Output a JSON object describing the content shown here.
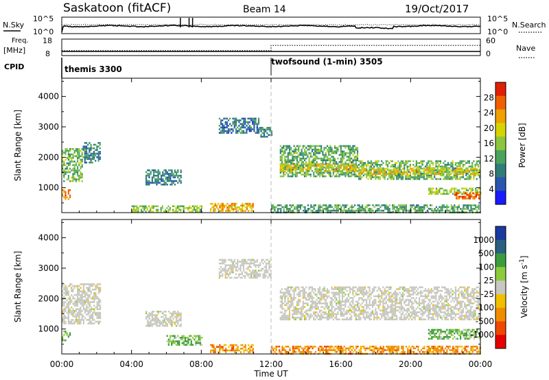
{
  "chart_data": {
    "type": "heatmap",
    "title": "Saskatoon (fitACF)",
    "beam_label": "Beam 14",
    "date": "19/Oct/2017",
    "x_ticks": [
      "00:00",
      "04:00",
      "08:00",
      "12:00",
      "16:00",
      "20:00",
      "00:00"
    ],
    "xlabel": "Time UT",
    "x_range_hours": [
      0,
      24
    ],
    "nsky_panel": {
      "left_label": "N.Sky",
      "right_label": "N.Search",
      "left_ticks": [
        "10^5",
        "10^0"
      ],
      "right_ticks": [
        "10^5",
        "10^0"
      ]
    },
    "freq_panel": {
      "left_label_1": "Freq.",
      "left_label_2": "[MHz]",
      "right_label": "Nave",
      "left_ticks": [
        "18",
        "8"
      ],
      "right_ticks": [
        "60",
        "0"
      ],
      "frequency_mhz": 10.5,
      "nave_series": [
        {
          "t_from": 0,
          "t_to": 12,
          "value": 18
        },
        {
          "t_from": 12,
          "t_to": 24,
          "value": 37
        }
      ]
    },
    "cpid_panel": {
      "label": "CPID",
      "programs": [
        {
          "name": "themis 3300",
          "start_hour": 0
        },
        {
          "name": "twofsound (1-min) 3505",
          "start_hour": 12
        }
      ]
    },
    "y_ticks": [
      "4000",
      "3000",
      "2000",
      "1000"
    ],
    "ylabel": "Slant Range [km]",
    "y_range_km": [
      180,
      4600
    ],
    "power_panel": {
      "colorbar_label": "Power [dB]",
      "colorbar_ticks": [
        "28",
        "24",
        "20",
        "16",
        "12",
        "8",
        "4"
      ],
      "colorbar_range_db": [
        0,
        32
      ],
      "colors": [
        "#1a1aff",
        "#2a55b0",
        "#2f7d7a",
        "#4aa35c",
        "#8cc63f",
        "#d6d400",
        "#f0a000",
        "#f06000",
        "#e02000"
      ],
      "echo_regions": [
        {
          "t0": 0.0,
          "t1": 1.2,
          "r0": 1200,
          "r1": 2300,
          "db": 14
        },
        {
          "t0": 1.2,
          "t1": 2.2,
          "r0": 1800,
          "r1": 2500,
          "db": 10
        },
        {
          "t0": 0.0,
          "t1": 0.5,
          "r0": 600,
          "r1": 950,
          "db": 24
        },
        {
          "t0": 4.8,
          "t1": 6.8,
          "r0": 1100,
          "r1": 1600,
          "db": 9
        },
        {
          "t0": 9.0,
          "t1": 11.3,
          "r0": 2800,
          "r1": 3300,
          "db": 8
        },
        {
          "t0": 11.3,
          "t1": 12.0,
          "r0": 2700,
          "r1": 3000,
          "db": 9
        },
        {
          "t0": 8.5,
          "t1": 11.0,
          "r0": 250,
          "r1": 500,
          "db": 22
        },
        {
          "t0": 4.0,
          "t1": 8.0,
          "r0": 220,
          "r1": 420,
          "db": 16
        },
        {
          "t0": 12.5,
          "t1": 17.0,
          "r0": 1400,
          "r1": 2400,
          "db": 13
        },
        {
          "t0": 12.5,
          "t1": 17.0,
          "r0": 1550,
          "r1": 1800,
          "db": 20
        },
        {
          "t0": 17.0,
          "t1": 24.0,
          "r0": 1300,
          "r1": 1900,
          "db": 14
        },
        {
          "t0": 17.0,
          "t1": 24.0,
          "r0": 1450,
          "r1": 1650,
          "db": 20
        },
        {
          "t0": 21.0,
          "t1": 24.0,
          "r0": 800,
          "r1": 1000,
          "db": 16
        },
        {
          "t0": 22.5,
          "t1": 24.0,
          "r0": 650,
          "r1": 850,
          "db": 27
        },
        {
          "t0": 12.0,
          "t1": 24.0,
          "r0": 200,
          "r1": 450,
          "db": 12
        }
      ]
    },
    "velocity_panel": {
      "colorbar_label": "Velocity [m s^-1]",
      "colorbar_ticks": [
        "1000",
        "500",
        "100",
        "25",
        "-25",
        "-100",
        "-500",
        "-1000"
      ],
      "colorbar_range_ms": [
        -1500,
        1500
      ],
      "colors": [
        "#e60000",
        "#f04800",
        "#f08c00",
        "#f0c000",
        "#c8c8c0",
        "#8ccc3c",
        "#3c9c3c",
        "#2a6080",
        "#1a3aa0"
      ],
      "echo_regions": [
        {
          "t0": 0.0,
          "t1": 2.2,
          "r0": 1200,
          "r1": 2500,
          "class": "ground"
        },
        {
          "t0": 0.0,
          "t1": 0.5,
          "r0": 600,
          "r1": 950,
          "class": "positive"
        },
        {
          "t0": 4.8,
          "t1": 6.8,
          "r0": 1100,
          "r1": 1600,
          "class": "ground"
        },
        {
          "t0": 9.0,
          "t1": 12.0,
          "r0": 2700,
          "r1": 3300,
          "class": "ground"
        },
        {
          "t0": 8.5,
          "t1": 11.0,
          "r0": 250,
          "r1": 500,
          "class": "negative"
        },
        {
          "t0": 6.0,
          "t1": 8.0,
          "r0": 500,
          "r1": 800,
          "class": "positive"
        },
        {
          "t0": 12.5,
          "t1": 24.0,
          "r0": 1300,
          "r1": 2400,
          "class": "ground"
        },
        {
          "t0": 21.0,
          "t1": 24.0,
          "r0": 650,
          "r1": 1000,
          "class": "positive"
        },
        {
          "t0": 12.0,
          "t1": 24.0,
          "r0": 200,
          "r1": 450,
          "class": "negative"
        }
      ]
    }
  }
}
